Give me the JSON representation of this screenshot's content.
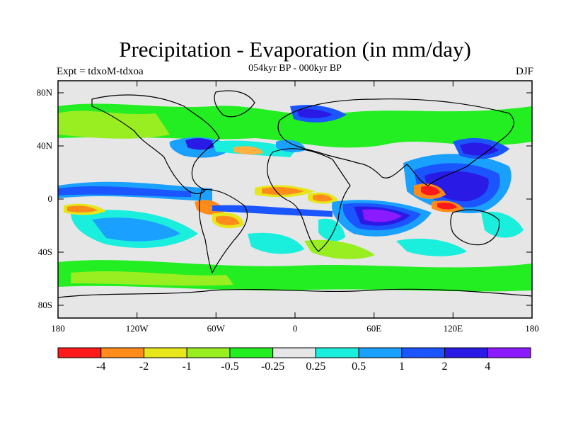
{
  "title": "Precipitation - Evaporation (in mm/day)",
  "subtitle": "054kyr BP - 000kyr BP",
  "experiment_label": "Expt = tdxoM-tdxoa",
  "season_label": "DJF",
  "map": {
    "lon_range": [
      -180,
      180
    ],
    "lat_range": [
      -90,
      90
    ],
    "x_tick_labels": [
      "180",
      "120W",
      "60W",
      "0",
      "60E",
      "120E",
      "180"
    ],
    "y_tick_labels": [
      "80N",
      "40N",
      "0",
      "40S",
      "80S"
    ],
    "background_color": "#e6e6e6"
  },
  "colorbar": {
    "colors": [
      "#ff1a1a",
      "#ff8c1a",
      "#e6e61a",
      "#99ee22",
      "#22ee22",
      "#e6e6e6",
      "#1aeedd",
      "#1aa0ff",
      "#1a55ff",
      "#2a1ae6",
      "#8c1aff"
    ],
    "labels": [
      "-4",
      "-2",
      "-1",
      "-0.5",
      "-0.25",
      "0.25",
      "0.5",
      "1",
      "2",
      "4"
    ]
  }
}
